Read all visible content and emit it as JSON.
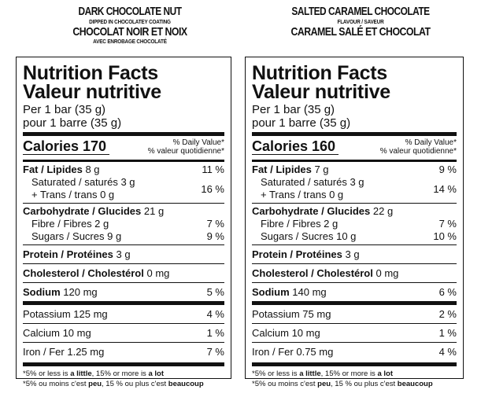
{
  "products": [
    {
      "name_en": "DARK CHOCOLATE NUT",
      "sub_en": "DIPPED IN CHOCOLATEY COATING",
      "name_fr": "CHOCOLAT NOIR ET NOIX",
      "sub_fr": "AVEC ENROBAGE CHOCOLATÉ",
      "label": {
        "title_en": "Nutrition Facts",
        "title_fr": "Valeur nutritive",
        "serving_en": "Per 1 bar (35 g)",
        "serving_fr": "pour 1 barre (35 g)",
        "calories": "Calories 170",
        "dv_en": "% Daily Value*",
        "dv_fr": "% valeur quotidienne*",
        "fat_label": "Fat / Lipides",
        "fat_amt": " 8 g",
        "fat_pct": "11 %",
        "sat_line": "Saturated / saturés 3 g",
        "trans_line": "+ Trans / trans 0 g",
        "sat_pct": "16 %",
        "carb_label": "Carbohydrate / Glucides",
        "carb_amt": " 21 g",
        "fibre_line": "Fibre / Fibres 2 g",
        "fibre_pct": "7 %",
        "sugar_line": "Sugars / Sucres 9 g",
        "sugar_pct": "9 %",
        "protein_label": "Protein / Protéines",
        "protein_amt": " 3 g",
        "chol_label": "Cholesterol / Cholestérol",
        "chol_amt": " 0 mg",
        "sodium_label": "Sodium",
        "sodium_amt": " 120 mg",
        "sodium_pct": "5 %",
        "potassium_line": "Potassium 125 mg",
        "potassium_pct": "4 %",
        "calcium_line": "Calcium 10 mg",
        "calcium_pct": "1 %",
        "iron_line": "Iron / Fer 1.25 mg",
        "iron_pct": "7 %",
        "foot1_a": "*5% or less is ",
        "foot1_b": "a little",
        "foot1_c": ", 15% or more is ",
        "foot1_d": "a lot",
        "foot2_a": "*5% ou moins c'est ",
        "foot2_b": "peu",
        "foot2_c": ", 15 % ou plus c'est ",
        "foot2_d": "beaucoup"
      }
    },
    {
      "name_en": "SALTED CARAMEL CHOCOLATE",
      "sub_en": "FLAVOUR / SAVEUR",
      "name_fr": "CARAMEL SALÉ ET CHOCOLAT",
      "sub_fr": "",
      "label": {
        "title_en": "Nutrition Facts",
        "title_fr": "Valeur nutritive",
        "serving_en": "Per 1 bar (35 g)",
        "serving_fr": "pour 1 barre (35 g)",
        "calories": "Calories 160",
        "dv_en": "% Daily Value*",
        "dv_fr": "% valeur quotidienne*",
        "fat_label": "Fat / Lipides",
        "fat_amt": " 7 g",
        "fat_pct": "9 %",
        "sat_line": "Saturated / saturés 3 g",
        "trans_line": "+ Trans / trans 0 g",
        "sat_pct": "14 %",
        "carb_label": "Carbohydrate / Glucides",
        "carb_amt": " 22 g",
        "fibre_line": "Fibre / Fibres 2 g",
        "fibre_pct": "7 %",
        "sugar_line": "Sugars / Sucres 10 g",
        "sugar_pct": "10 %",
        "protein_label": "Protein / Protéines",
        "protein_amt": " 3 g",
        "chol_label": "Cholesterol / Cholestérol",
        "chol_amt": " 0 mg",
        "sodium_label": "Sodium",
        "sodium_amt": " 140 mg",
        "sodium_pct": "6 %",
        "potassium_line": "Potassium 75 mg",
        "potassium_pct": "2 %",
        "calcium_line": "Calcium 10 mg",
        "calcium_pct": "1 %",
        "iron_line": "Iron / Fer 0.75 mg",
        "iron_pct": "4 %",
        "foot1_a": "*5% or less is ",
        "foot1_b": "a little",
        "foot1_c": ", 15% or more is ",
        "foot1_d": "a lot",
        "foot2_a": "*5% ou moins c'est ",
        "foot2_b": "peu",
        "foot2_c": ", 15 % ou plus c'est ",
        "foot2_d": "beaucoup"
      }
    }
  ]
}
